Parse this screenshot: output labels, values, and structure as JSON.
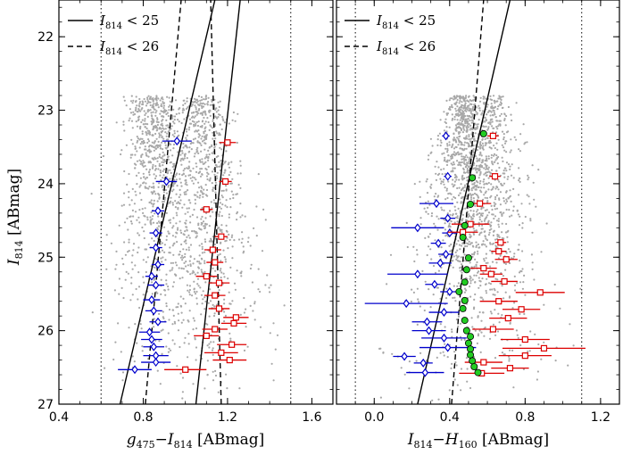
{
  "figure": {
    "ylabel": "I814 [ABmag]",
    "ylabel_main": "I",
    "ylabel_sub": "814",
    "ylabel_unit": " [ABmag]"
  },
  "chart_data": [
    {
      "type": "scatter",
      "name": "left-panel",
      "xlabel": "g475−I814 [ABmag]",
      "xlabel_parts": {
        "a": "g",
        "a_sub": "475",
        "dash": "−",
        "b": "I",
        "b_sub": "814",
        "unit": " [ABmag]"
      },
      "ylabel": "I814 [ABmag]",
      "xlim": [
        0.4,
        1.7
      ],
      "ylim": [
        27,
        21.5
      ],
      "xticks": [
        0.4,
        0.8,
        1.2,
        1.6
      ],
      "xtick_labels": [
        "0.4",
        "0.8",
        "1.2",
        "1.6"
      ],
      "yticks": [
        22,
        23,
        24,
        25,
        26,
        27
      ],
      "ytick_labels": [
        "22",
        "23",
        "24",
        "25",
        "26",
        "27"
      ],
      "legend": {
        "position": "top-left",
        "entries": [
          {
            "style": "solid",
            "label": "I814 < 25",
            "main": "I",
            "sub": "814",
            "rest": " < 25"
          },
          {
            "style": "dashed",
            "label": "I814 < 26",
            "main": "I",
            "sub": "814",
            "rest": " < 26"
          }
        ]
      },
      "dotted_verticals": [
        0.6,
        1.5
      ],
      "solid_lines": [
        {
          "points": [
            [
              0.69,
              27
            ],
            [
              1.14,
              21.5
            ]
          ]
        },
        {
          "points": [
            [
              1.05,
              27
            ],
            [
              1.26,
              21.5
            ]
          ]
        }
      ],
      "dashed_lines": [
        {
          "points": [
            [
              0.81,
              27
            ],
            [
              0.98,
              21.5
            ]
          ]
        },
        {
          "points": [
            [
              1.17,
              27
            ],
            [
              1.12,
              21.5
            ]
          ]
        }
      ],
      "series": [
        {
          "name": "blue-sequence",
          "marker": "diamond",
          "color": "#0000cc",
          "points": [
            {
              "x": 0.96,
              "y": 23.42,
              "xerr": 0.07
            },
            {
              "x": 0.91,
              "y": 23.97,
              "xerr": 0.05
            },
            {
              "x": 0.87,
              "y": 24.37,
              "xerr": 0.03
            },
            {
              "x": 0.86,
              "y": 24.67,
              "xerr": 0.03
            },
            {
              "x": 0.86,
              "y": 24.87,
              "xerr": 0.03
            },
            {
              "x": 0.87,
              "y": 25.1,
              "xerr": 0.03
            },
            {
              "x": 0.84,
              "y": 25.26,
              "xerr": 0.03
            },
            {
              "x": 0.86,
              "y": 25.38,
              "xerr": 0.04
            },
            {
              "x": 0.84,
              "y": 25.58,
              "xerr": 0.04
            },
            {
              "x": 0.85,
              "y": 25.73,
              "xerr": 0.04
            },
            {
              "x": 0.87,
              "y": 25.88,
              "xerr": 0.04
            },
            {
              "x": 0.83,
              "y": 26.02,
              "xerr": 0.05
            },
            {
              "x": 0.84,
              "y": 26.12,
              "xerr": 0.05
            },
            {
              "x": 0.85,
              "y": 26.22,
              "xerr": 0.05
            },
            {
              "x": 0.86,
              "y": 26.34,
              "xerr": 0.06
            },
            {
              "x": 0.86,
              "y": 26.43,
              "xerr": 0.07
            },
            {
              "x": 0.76,
              "y": 26.53,
              "xerr": 0.08
            }
          ]
        },
        {
          "name": "red-sequence",
          "marker": "square",
          "color": "#dd0000",
          "points": [
            {
              "x": 1.2,
              "y": 23.44,
              "xerr": 0.04
            },
            {
              "x": 1.19,
              "y": 23.97,
              "xerr": 0.03
            },
            {
              "x": 1.1,
              "y": 24.35,
              "xerr": 0.03
            },
            {
              "x": 1.17,
              "y": 24.72,
              "xerr": 0.03
            },
            {
              "x": 1.13,
              "y": 24.9,
              "xerr": 0.04
            },
            {
              "x": 1.14,
              "y": 25.07,
              "xerr": 0.04
            },
            {
              "x": 1.1,
              "y": 25.26,
              "xerr": 0.05
            },
            {
              "x": 1.16,
              "y": 25.35,
              "xerr": 0.05
            },
            {
              "x": 1.14,
              "y": 25.52,
              "xerr": 0.05
            },
            {
              "x": 1.16,
              "y": 25.7,
              "xerr": 0.05
            },
            {
              "x": 1.24,
              "y": 25.82,
              "xerr": 0.06
            },
            {
              "x": 1.23,
              "y": 25.9,
              "xerr": 0.06
            },
            {
              "x": 1.14,
              "y": 25.98,
              "xerr": 0.06
            },
            {
              "x": 1.1,
              "y": 26.07,
              "xerr": 0.06
            },
            {
              "x": 1.22,
              "y": 26.19,
              "xerr": 0.07
            },
            {
              "x": 1.17,
              "y": 26.3,
              "xerr": 0.08
            },
            {
              "x": 1.21,
              "y": 26.4,
              "xerr": 0.08
            },
            {
              "x": 1.0,
              "y": 26.53,
              "xerr": 0.1
            }
          ]
        }
      ]
    },
    {
      "type": "scatter",
      "name": "right-panel",
      "xlabel": "I814−H160 [ABmag]",
      "xlabel_parts": {
        "a": "I",
        "a_sub": "814",
        "dash": "−",
        "b": "H",
        "b_sub": "160",
        "unit": " [ABmag]"
      },
      "xlim": [
        -0.2,
        1.3
      ],
      "ylim": [
        27,
        21.5
      ],
      "xticks": [
        0.0,
        0.4,
        0.8,
        1.2
      ],
      "xtick_labels": [
        "0.0",
        "0.4",
        "0.8",
        "1.2"
      ],
      "yticks": [
        22,
        23,
        24,
        25,
        26,
        27
      ],
      "legend": {
        "position": "top-left",
        "entries": [
          {
            "style": "solid",
            "label": "I814 < 25",
            "main": "I",
            "sub": "814",
            "rest": " < 25"
          },
          {
            "style": "dashed",
            "label": "I814 < 26",
            "main": "I",
            "sub": "814",
            "rest": " < 26"
          }
        ]
      },
      "dotted_verticals": [
        -0.1,
        1.1
      ],
      "solid_lines": [
        {
          "points": [
            [
              0.23,
              27
            ],
            [
              0.72,
              21.5
            ]
          ]
        }
      ],
      "dashed_lines": [
        {
          "points": [
            [
              0.41,
              27
            ],
            [
              0.58,
              21.5
            ]
          ]
        }
      ],
      "series": [
        {
          "name": "blue-sequence",
          "marker": "diamond",
          "color": "#0000cc",
          "points": [
            {
              "x": 0.38,
              "y": 23.35,
              "xerr": 0.02
            },
            {
              "x": 0.39,
              "y": 23.9,
              "xerr": 0.02
            },
            {
              "x": 0.33,
              "y": 24.27,
              "xerr": 0.09
            },
            {
              "x": 0.39,
              "y": 24.47,
              "xerr": 0.04
            },
            {
              "x": 0.23,
              "y": 24.6,
              "xerr": 0.14
            },
            {
              "x": 0.4,
              "y": 24.67,
              "xerr": 0.04
            },
            {
              "x": 0.34,
              "y": 24.81,
              "xerr": 0.04
            },
            {
              "x": 0.38,
              "y": 24.96,
              "xerr": 0.04
            },
            {
              "x": 0.35,
              "y": 25.08,
              "xerr": 0.06
            },
            {
              "x": 0.23,
              "y": 25.23,
              "xerr": 0.16
            },
            {
              "x": 0.32,
              "y": 25.37,
              "xerr": 0.05
            },
            {
              "x": 0.4,
              "y": 25.47,
              "xerr": 0.05
            },
            {
              "x": 0.17,
              "y": 25.63,
              "xerr": 0.22
            },
            {
              "x": 0.37,
              "y": 25.75,
              "xerr": 0.08
            },
            {
              "x": 0.28,
              "y": 25.88,
              "xerr": 0.08
            },
            {
              "x": 0.29,
              "y": 26.0,
              "xerr": 0.09
            },
            {
              "x": 0.37,
              "y": 26.1,
              "xerr": 0.12
            },
            {
              "x": 0.39,
              "y": 26.23,
              "xerr": 0.15
            },
            {
              "x": 0.16,
              "y": 26.35,
              "xerr": 0.06
            },
            {
              "x": 0.26,
              "y": 26.44,
              "xerr": 0.05
            },
            {
              "x": 0.27,
              "y": 26.57,
              "xerr": 0.1
            }
          ]
        },
        {
          "name": "red-sequence",
          "marker": "square",
          "color": "#dd0000",
          "points": [
            {
              "x": 0.63,
              "y": 23.35,
              "xerr": 0.03
            },
            {
              "x": 0.64,
              "y": 23.9,
              "xerr": 0.03
            },
            {
              "x": 0.56,
              "y": 24.27,
              "xerr": 0.06
            },
            {
              "x": 0.51,
              "y": 24.55,
              "xerr": 0.1
            },
            {
              "x": 0.47,
              "y": 24.66,
              "xerr": 0.08
            },
            {
              "x": 0.67,
              "y": 24.8,
              "xerr": 0.03
            },
            {
              "x": 0.66,
              "y": 24.92,
              "xerr": 0.04
            },
            {
              "x": 0.7,
              "y": 25.03,
              "xerr": 0.06
            },
            {
              "x": 0.58,
              "y": 25.15,
              "xerr": 0.07
            },
            {
              "x": 0.62,
              "y": 25.23,
              "xerr": 0.06
            },
            {
              "x": 0.69,
              "y": 25.33,
              "xerr": 0.07
            },
            {
              "x": 0.88,
              "y": 25.48,
              "xerr": 0.13
            },
            {
              "x": 0.66,
              "y": 25.6,
              "xerr": 0.1
            },
            {
              "x": 0.78,
              "y": 25.71,
              "xerr": 0.1
            },
            {
              "x": 0.71,
              "y": 25.83,
              "xerr": 0.1
            },
            {
              "x": 0.63,
              "y": 25.98,
              "xerr": 0.11
            },
            {
              "x": 0.8,
              "y": 26.12,
              "xerr": 0.13
            },
            {
              "x": 0.9,
              "y": 26.24,
              "xerr": 0.22
            },
            {
              "x": 0.8,
              "y": 26.34,
              "xerr": 0.14
            },
            {
              "x": 0.58,
              "y": 26.43,
              "xerr": 0.1
            },
            {
              "x": 0.72,
              "y": 26.51,
              "xerr": 0.1
            },
            {
              "x": 0.57,
              "y": 26.58,
              "xerr": 0.12
            }
          ]
        },
        {
          "name": "green-ridge",
          "marker": "circle",
          "color": "#22cc22",
          "points": [
            {
              "x": 0.58,
              "y": 23.32
            },
            {
              "x": 0.52,
              "y": 23.92
            },
            {
              "x": 0.51,
              "y": 24.28
            },
            {
              "x": 0.48,
              "y": 24.57
            },
            {
              "x": 0.47,
              "y": 24.73
            },
            {
              "x": 0.5,
              "y": 25.01
            },
            {
              "x": 0.49,
              "y": 25.17
            },
            {
              "x": 0.48,
              "y": 25.34
            },
            {
              "x": 0.45,
              "y": 25.47
            },
            {
              "x": 0.48,
              "y": 25.59
            },
            {
              "x": 0.47,
              "y": 25.7
            },
            {
              "x": 0.48,
              "y": 25.86
            },
            {
              "x": 0.49,
              "y": 26.0
            },
            {
              "x": 0.51,
              "y": 26.08
            },
            {
              "x": 0.5,
              "y": 26.17
            },
            {
              "x": 0.51,
              "y": 26.25
            },
            {
              "x": 0.51,
              "y": 26.33
            },
            {
              "x": 0.52,
              "y": 26.41
            },
            {
              "x": 0.53,
              "y": 26.49
            },
            {
              "x": 0.55,
              "y": 26.57
            }
          ]
        }
      ]
    }
  ]
}
